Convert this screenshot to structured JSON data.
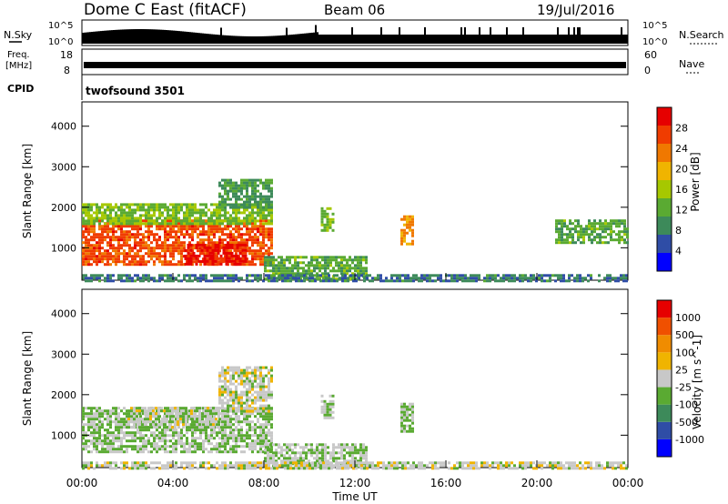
{
  "header": {
    "station": "Dome C East (fitACF)",
    "beam": "Beam 06",
    "date": "19/Jul/2016"
  },
  "strips": {
    "nsky_label": "N.Sky",
    "nsky_ticks": [
      "10^5",
      "10^0"
    ],
    "nsearch_label": "N.Search",
    "nsearch_ticks": [
      "10^5",
      "10^0"
    ],
    "freq_label_1": "Freq.",
    "freq_label_2": "[MHz]",
    "freq_ticks": [
      "18",
      "8"
    ],
    "nave_label": "Nave",
    "nave_ticks": [
      "60",
      "0"
    ],
    "cpid_label": "CPID",
    "cpid_value": "twofsound 3501"
  },
  "chart_data": [
    {
      "type": "heatmap",
      "panel": "power",
      "xlabel": "",
      "ylabel": "Slant Range [km]",
      "yticks": [
        1000,
        2000,
        3000,
        4000
      ],
      "ylim": [
        200,
        4600
      ],
      "colorbar_label": "Power [dB]",
      "colorbar_ticks": [
        "28",
        "24",
        "20",
        "16",
        "12",
        "8",
        "4"
      ],
      "colors": [
        "#0000ff",
        "#2f4da6",
        "#3d8a5a",
        "#5aaa32",
        "#a6c800",
        "#f0b400",
        "#f07800",
        "#f03c00",
        "#e60000"
      ],
      "value_range_db": [
        0,
        32
      ],
      "regions": [
        {
          "t0": 0.0,
          "t1": 8.3,
          "r0": 600,
          "r1": 1700,
          "v": 26
        },
        {
          "t0": 4.5,
          "t1": 7.2,
          "r0": 600,
          "r1": 1100,
          "v": 30
        },
        {
          "t0": 0.0,
          "t1": 8.3,
          "r0": 1600,
          "r1": 2100,
          "v": 14
        },
        {
          "t0": 6.0,
          "t1": 8.4,
          "r0": 2000,
          "r1": 2700,
          "v": 10
        },
        {
          "t0": 10.5,
          "t1": 11.0,
          "r0": 1400,
          "r1": 2000,
          "v": 14
        },
        {
          "t0": 14.0,
          "t1": 14.5,
          "r0": 1100,
          "r1": 1800,
          "v": 22
        },
        {
          "t0": 20.8,
          "t1": 24.0,
          "r0": 1100,
          "r1": 1700,
          "v": 12
        },
        {
          "t0": 8.0,
          "t1": 12.5,
          "r0": 200,
          "r1": 800,
          "v": 12
        },
        {
          "t0": 0.0,
          "t1": 24.0,
          "r0": 200,
          "r1": 350,
          "v": 8
        }
      ]
    },
    {
      "type": "heatmap",
      "panel": "velocity",
      "xlabel": "Time UT",
      "ylabel": "Slant Range [km]",
      "xticks": [
        "00:00",
        "04:00",
        "08:00",
        "12:00",
        "16:00",
        "20:00",
        "00:00"
      ],
      "xlim_hours": [
        0,
        24
      ],
      "yticks": [
        1000,
        2000,
        3000,
        4000
      ],
      "ylim": [
        200,
        4600
      ],
      "colorbar_label": "Velocity [m s^-1]",
      "colorbar_ticks": [
        "1000",
        "500",
        "100",
        "25",
        "-25",
        "-100",
        "-500",
        "-1000"
      ],
      "colors": [
        "#0000ff",
        "#2f4da6",
        "#3d8a5a",
        "#5aaa32",
        "#c8c8c8",
        "#f0b400",
        "#f08c00",
        "#f05000",
        "#e60000"
      ],
      "value_range_ms": [
        -1200,
        1200
      ],
      "regions": [
        {
          "t0": 0.0,
          "t1": 8.3,
          "r0": 600,
          "r1": 1700,
          "v": -150
        },
        {
          "t0": 2.0,
          "t1": 6.0,
          "r0": 1200,
          "r1": 1700,
          "v": -50
        },
        {
          "t0": 6.0,
          "t1": 8.4,
          "r0": 1600,
          "r1": 2700,
          "v": 0
        },
        {
          "t0": 10.5,
          "t1": 11.0,
          "r0": 1400,
          "r1": 2000,
          "v": -80
        },
        {
          "t0": 14.0,
          "t1": 14.5,
          "r0": 1100,
          "r1": 1800,
          "v": -200
        },
        {
          "t0": 8.0,
          "t1": 12.5,
          "r0": 200,
          "r1": 800,
          "v": -100
        },
        {
          "t0": 0.0,
          "t1": 24.0,
          "r0": 200,
          "r1": 350,
          "v": 10
        }
      ]
    }
  ]
}
